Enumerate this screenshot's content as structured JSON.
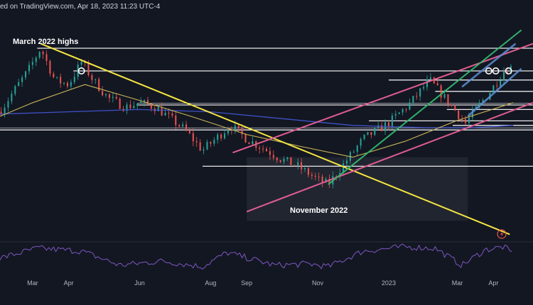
{
  "header": {
    "text": "ed on TradingView.com, Apr 18, 2023 11:23 UTC-4"
  },
  "annotations": {
    "march_highs": "March 2022 highs",
    "november": "November 2022"
  },
  "colors": {
    "background": "#131722",
    "bull": "#26a69a",
    "bear": "#ef5350",
    "ma_fast": "#c9b458",
    "ma_slow": "#3f51c7",
    "trend_yellow": "#f5e642",
    "channel_pink": "#e05d91",
    "channel_blue": "#5e8fd6",
    "green_line": "#2fb36c",
    "rsi": "#7e57c2",
    "level": "#ffffff"
  },
  "chart_data": {
    "type": "candlestick",
    "title": "",
    "x_labels": [
      "Mar",
      "Apr",
      "Jun",
      "Aug",
      "Sep",
      "Nov",
      "2023",
      "Mar",
      "Apr"
    ],
    "x_label_dates": [
      "2022-03-01",
      "2022-04-01",
      "2022-06-01",
      "2022-08-01",
      "2022-09-01",
      "2022-11-01",
      "2023-01-01",
      "2023-03-01",
      "2023-04-01"
    ],
    "x_range": [
      "2022-02-01",
      "2023-05-05"
    ],
    "price_path": [
      [
        "2022-02-01",
        32
      ],
      [
        "2022-02-14",
        42
      ],
      [
        "2022-02-25",
        50
      ],
      [
        "2022-03-08",
        60
      ],
      [
        "2022-03-20",
        46
      ],
      [
        "2022-04-01",
        44
      ],
      [
        "2022-04-12",
        54
      ],
      [
        "2022-04-22",
        46
      ],
      [
        "2022-05-05",
        38
      ],
      [
        "2022-05-20",
        34
      ],
      [
        "2022-06-01",
        36
      ],
      [
        "2022-06-15",
        34
      ],
      [
        "2022-06-25",
        30
      ],
      [
        "2022-07-10",
        24
      ],
      [
        "2022-07-25",
        15
      ],
      [
        "2022-08-05",
        20
      ],
      [
        "2022-08-18",
        26
      ],
      [
        "2022-09-01",
        20
      ],
      [
        "2022-09-15",
        16
      ],
      [
        "2022-10-01",
        11
      ],
      [
        "2022-10-15",
        8
      ],
      [
        "2022-11-01",
        2
      ],
      [
        "2022-11-10",
        0
      ],
      [
        "2022-11-25",
        10
      ],
      [
        "2022-12-10",
        20
      ],
      [
        "2023-01-01",
        27
      ],
      [
        "2023-01-20",
        36
      ],
      [
        "2023-02-05",
        46
      ],
      [
        "2023-02-15",
        40
      ],
      [
        "2023-02-28",
        32
      ],
      [
        "2023-03-08",
        27
      ],
      [
        "2023-03-20",
        35
      ],
      [
        "2023-04-01",
        43
      ],
      [
        "2023-04-10",
        50
      ],
      [
        "2023-04-18",
        52
      ]
    ],
    "moving_average_fast": [
      [
        "2022-02-01",
        30
      ],
      [
        "2022-03-01",
        36
      ],
      [
        "2022-04-15",
        44
      ],
      [
        "2022-06-01",
        37
      ],
      [
        "2022-07-15",
        30
      ],
      [
        "2022-09-01",
        22
      ],
      [
        "2022-10-15",
        17
      ],
      [
        "2022-12-01",
        12
      ],
      [
        "2023-01-15",
        19
      ],
      [
        "2023-02-28",
        28
      ],
      [
        "2023-04-18",
        36
      ]
    ],
    "moving_average_slow": [
      [
        "2022-02-01",
        31
      ],
      [
        "2022-04-01",
        32
      ],
      [
        "2022-06-01",
        33
      ],
      [
        "2022-08-01",
        32
      ],
      [
        "2022-10-01",
        29
      ],
      [
        "2022-12-01",
        26
      ],
      [
        "2023-02-01",
        25
      ],
      [
        "2023-03-15",
        25
      ],
      [
        "2023-04-18",
        26
      ]
    ],
    "horizontal_levels": [
      {
        "from": "2022-03-05",
        "to": "2023-05-05",
        "y": 60
      },
      {
        "from": "2022-04-05",
        "to": "2023-05-05",
        "y": 50
      },
      {
        "from": "2023-01-01",
        "to": "2023-05-05",
        "y": 46
      },
      {
        "from": "2023-02-10",
        "to": "2023-05-05",
        "y": 41
      },
      {
        "from": "2022-05-30",
        "to": "2023-05-05",
        "y": 35
      },
      {
        "from": "2023-02-20",
        "to": "2023-05-05",
        "y": 33
      },
      {
        "from": "2022-12-15",
        "to": "2023-05-05",
        "y": 28
      },
      {
        "from": "2023-02-25",
        "to": "2023-05-05",
        "y": 26
      },
      {
        "from": "2022-02-01",
        "to": "2023-05-05",
        "y": 24
      },
      {
        "from": "2022-07-25",
        "to": "2023-05-05",
        "y": 8
      }
    ],
    "trendlines": [
      {
        "name": "",
        "color": "trend_yellow",
        "from": [
          "2022-03-08",
          62
        ],
        "to": [
          "2023-04-15",
          -22
        ]
      },
      {
        "name": "",
        "color": "channel_pink",
        "from": [
          "2022-08-20",
          14
        ],
        "to": [
          "2023-05-05",
          62
        ]
      },
      {
        "name": "",
        "color": "channel_pink",
        "from": [
          "2022-09-01",
          -12
        ],
        "to": [
          "2023-05-05",
          36
        ]
      },
      {
        "name": "",
        "color": "green_line",
        "from": [
          "2022-11-10",
          0
        ],
        "to": [
          "2023-04-25",
          68
        ]
      },
      {
        "name": "",
        "color": "channel_blue",
        "from": [
          "2023-03-05",
          43
        ],
        "to": [
          "2023-04-20",
          62
        ]
      },
      {
        "name": "",
        "color": "channel_blue",
        "from": [
          "2023-03-10",
          30
        ],
        "to": [
          "2023-04-25",
          51
        ]
      }
    ],
    "circle_markers": [
      [
        "2022-04-12",
        50
      ],
      [
        "2023-03-28",
        50
      ],
      [
        "2023-04-03",
        50
      ],
      [
        "2023-04-14",
        50
      ]
    ],
    "rsi_path": [
      [
        "2022-02-01",
        50
      ],
      [
        "2022-03-05",
        64
      ],
      [
        "2022-04-12",
        60
      ],
      [
        "2022-05-15",
        40
      ],
      [
        "2022-06-20",
        46
      ],
      [
        "2022-07-25",
        38
      ],
      [
        "2022-08-15",
        58
      ],
      [
        "2022-09-25",
        40
      ],
      [
        "2022-10-25",
        42
      ],
      [
        "2022-11-10",
        38
      ],
      [
        "2022-12-10",
        60
      ],
      [
        "2023-01-15",
        66
      ],
      [
        "2023-02-10",
        64
      ],
      [
        "2023-03-05",
        40
      ],
      [
        "2023-03-25",
        62
      ],
      [
        "2023-04-10",
        66
      ],
      [
        "2023-04-18",
        56
      ]
    ],
    "grid": false
  }
}
